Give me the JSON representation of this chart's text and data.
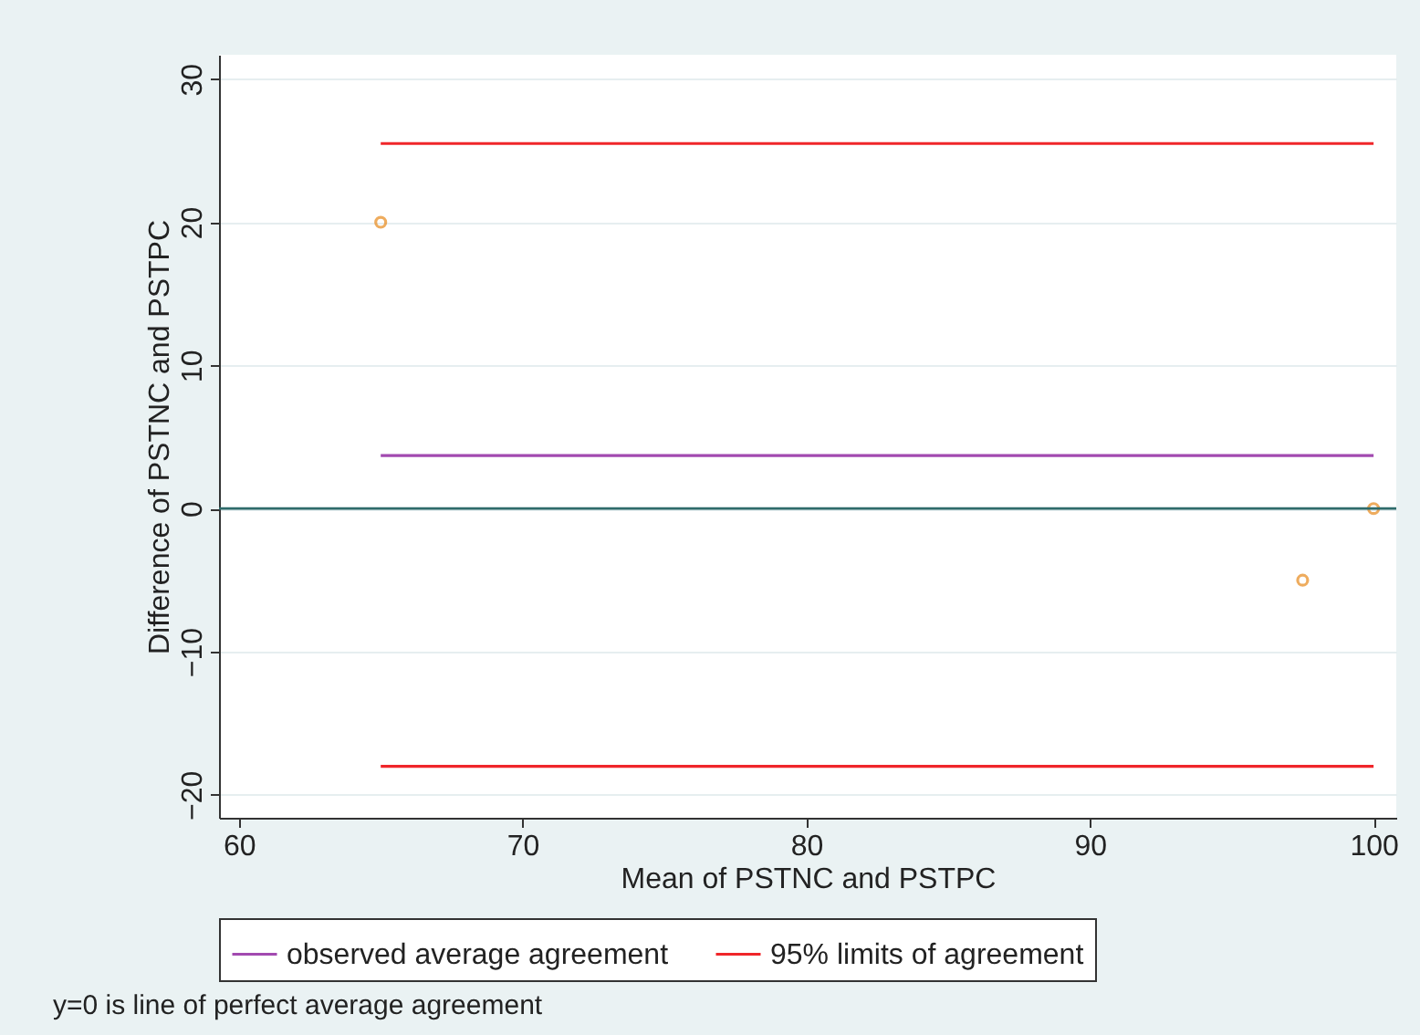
{
  "chart_data": {
    "type": "scatter",
    "xlabel": "Mean of PSTNC and PSTPC",
    "ylabel": "Difference of PSTNC and PSTPC",
    "series": [
      {
        "color": "#e8891b",
        "marker": "circle",
        "x": [
          65,
          97.5,
          100
        ],
        "values": [
          20,
          -5,
          0
        ]
      },
      {
        "name": "observed average agreement",
        "type": "line",
        "marker": "none",
        "color": "#a24ab0",
        "x": [
          65,
          100
        ],
        "values": [
          3.7,
          3.7
        ]
      },
      {
        "name": "95% limits of agreement",
        "type": "line",
        "marker": "none",
        "color": "#f0262a",
        "x": [
          65,
          100
        ],
        "values": [
          25.5,
          25.5
        ]
      },
      {
        "type": "line",
        "marker": "none",
        "color": "#f0262a",
        "x": [
          65,
          100
        ],
        "values": [
          -18,
          -18
        ]
      }
    ],
    "xlim": [
      59.3,
      100.8
    ],
    "xticks": [
      60,
      70,
      80,
      90,
      100
    ],
    "ylim": [
      -21.6,
      31.7
    ],
    "yticks": [
      -20,
      -10,
      0,
      10,
      20,
      30
    ],
    "ref_lines": [
      {
        "axis": "y",
        "value": 0,
        "color": "#2f6b6b"
      }
    ],
    "grid": "y",
    "legend": "bottom",
    "annotations": [
      "y=0 is line of perfect average agreement"
    ]
  }
}
